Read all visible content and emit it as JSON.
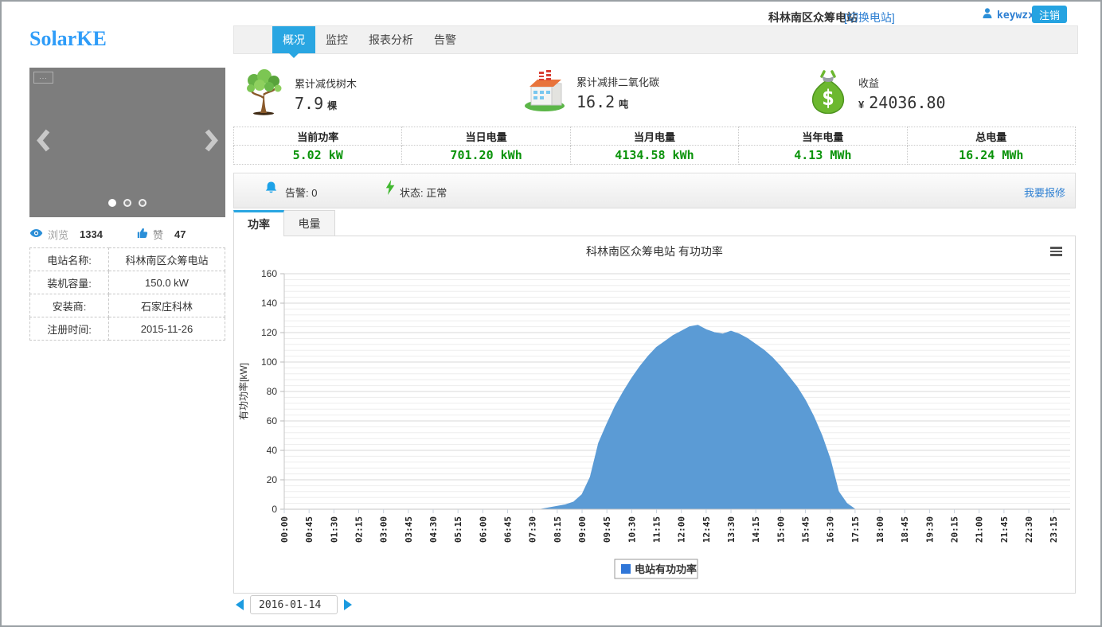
{
  "colors": {
    "accent_blue": "#29a6e2",
    "link_blue": "#2d7fd2",
    "logo_blue": "#2e9cf8",
    "value_green": "#0a930a",
    "series_blue": "#5b9bd5",
    "legend_blue": "#2f76d8"
  },
  "header": {
    "logo": "SolarKE",
    "station_name": "科林南区众筹电站",
    "switch_station": "[切换电站]",
    "username": "keywzx",
    "logout": "注销"
  },
  "nav": {
    "tabs": [
      {
        "label": "概况",
        "active": true
      },
      {
        "label": "监控",
        "active": false
      },
      {
        "label": "报表分析",
        "active": false
      },
      {
        "label": "告警",
        "active": false
      }
    ]
  },
  "carousel": {
    "placeholder": "...",
    "dots": 3,
    "active_dot": 0,
    "view_label": "浏览",
    "view_count": "1334",
    "like_label": "赞",
    "like_count": "47"
  },
  "station_info": {
    "rows": [
      {
        "label": "电站名称:",
        "value": "科林南区众筹电站"
      },
      {
        "label": "装机容量:",
        "value": "150.0 kW"
      },
      {
        "label": "安装商:",
        "value": "石家庄科林"
      },
      {
        "label": "注册时间:",
        "value": "2015-11-26"
      }
    ]
  },
  "eco_stats": [
    {
      "icon": "tree-icon",
      "label": "累计减伐树木",
      "value": "7.9",
      "unit": "棵"
    },
    {
      "icon": "factory-icon",
      "label": "累计减排二氧化碳",
      "value": "16.2",
      "unit": "吨"
    },
    {
      "icon": "money-bag-icon",
      "label": "收益",
      "currency": "¥",
      "value": "24036.80",
      "unit": ""
    }
  ],
  "power_table": {
    "headers": [
      "当前功率",
      "当日电量",
      "当月电量",
      "当年电量",
      "总电量"
    ],
    "values": [
      "5.02 kW",
      "701.20 kWh",
      "4134.58 kWh",
      "4.13 MWh",
      "16.24 MWh"
    ]
  },
  "status_bar": {
    "alarm_label": "告警:",
    "alarm_value": "0",
    "status_label": "状态:",
    "status_value": "正常",
    "repair_link": "我要报修"
  },
  "chart_tabs": [
    {
      "label": "功率",
      "active": true
    },
    {
      "label": "电量",
      "active": false
    }
  ],
  "chart_data": {
    "type": "area",
    "title": "科林南区众筹电站 有功功率",
    "ylabel": "有功功率[kW]",
    "ylim": [
      0,
      160
    ],
    "y_tick_step": 20,
    "x_start": "00:00",
    "x_interval_minutes": 15,
    "x_tick_labels": [
      "00:00",
      "00:45",
      "01:30",
      "02:15",
      "03:00",
      "03:45",
      "04:30",
      "05:15",
      "06:00",
      "06:45",
      "07:30",
      "08:15",
      "09:00",
      "09:45",
      "10:30",
      "11:15",
      "12:00",
      "12:45",
      "13:30",
      "14:15",
      "15:00",
      "15:45",
      "16:30",
      "17:15",
      "18:00",
      "18:45",
      "19:30",
      "20:15",
      "21:00",
      "21:45",
      "22:30",
      "23:15"
    ],
    "legend": [
      {
        "label": "电站有功功率",
        "color": "#2f76d8"
      }
    ],
    "grid": "horizontal-minor-and-major",
    "legend_position": "bottom-center",
    "series": [
      {
        "name": "电站有功功率",
        "color": "#5b9bd5",
        "values": [
          0,
          0,
          0,
          0,
          0,
          0,
          0,
          0,
          0,
          0,
          0,
          0,
          0,
          0,
          0,
          0,
          0,
          0,
          0,
          0,
          0,
          0,
          0,
          0,
          0,
          0,
          0,
          0,
          0,
          0,
          0,
          0,
          1,
          2,
          3,
          5,
          10,
          22,
          45,
          58,
          70,
          80,
          89,
          97,
          104,
          110,
          114,
          118,
          121,
          124,
          125,
          122,
          120,
          119,
          121,
          119,
          116,
          112,
          108,
          103,
          97,
          90,
          83,
          74,
          63,
          50,
          34,
          12,
          4,
          0,
          0,
          0,
          0,
          0,
          0,
          0,
          0,
          0,
          0,
          0,
          0,
          0,
          0,
          0,
          0,
          0,
          0,
          0,
          0,
          0,
          0,
          0,
          0,
          0,
          0,
          0
        ]
      }
    ]
  },
  "date_picker": {
    "value": "2016-01-14"
  }
}
